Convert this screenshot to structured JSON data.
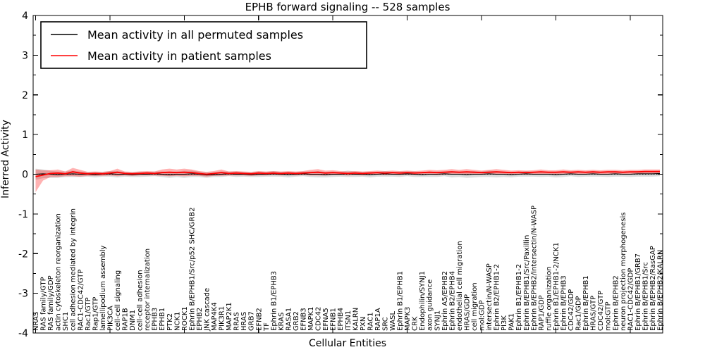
{
  "chart_data": {
    "type": "line",
    "title": "EPHB forward signaling -- 528 samples",
    "xlabel": "Cellular Entities",
    "ylabel": "Inferred Activity",
    "ylim": [
      -4,
      4
    ],
    "ytick_labels": [
      "-4",
      "-3",
      "-2",
      "-1",
      "0",
      "1",
      "2",
      "3",
      "4"
    ],
    "yticks_major": [
      -4,
      -3,
      -2,
      -1,
      0,
      1,
      2,
      3,
      4
    ],
    "yticks_minor": [
      -3.5,
      -2.5,
      -1.5,
      -0.5,
      0.5,
      1.5,
      2.5,
      3.5
    ],
    "x_tick_indices": [
      0,
      10,
      20,
      30,
      40,
      50,
      60,
      70,
      80
    ],
    "grid": false,
    "legend_position": "upper-left",
    "zero_line": {
      "value": 0,
      "style": "dotted",
      "color": "#000000"
    },
    "categories": [
      "NRAS",
      "RAS family/GTP",
      "RAS family/GDP",
      "actin cytoskeleton reorganization",
      "SHC1",
      "cell adhesion mediated by integrin",
      "RAC1-CDC42/GTP",
      "Rac1/GTP",
      "Rap1/GTP",
      "lamellipodium assembly",
      "PIK3CA",
      "cell-cell signaling",
      "RAP1B",
      "DNM1",
      "cell-cell adhesion",
      "receptor internalization",
      "EPHB3",
      "EPHB1",
      "PTK2",
      "NCK1",
      "ROCK1",
      "Ephrin B/EPHB1/Src/p52 SHC/GRB2",
      "EPHB2",
      "JNK cascade",
      "MAP4K4",
      "PIK3R1",
      "MAP2K1",
      "RRAS",
      "HRAS",
      "GRB7",
      "EFNB2",
      "TF",
      "Ephrin B1/EPHB3",
      "KRAS",
      "RASA1",
      "GRB2",
      "EFNB3",
      "MAPK1",
      "CDC42",
      "EFNA5",
      "EFNB1",
      "EPHB4",
      "ITSN1",
      "KALRN",
      "PXN",
      "RAC1",
      "RAP1A",
      "SRC",
      "WASL",
      "Ephrin B1/EPHB1",
      "MAPK3",
      "CRK",
      "Endophilin/SYNJ1",
      "axon guidance",
      "SYNJ1",
      "Ephrin A5/EPHB2",
      "Ephrin B2/EPHB4",
      "endothelial cell migration",
      "HRAS/GDP",
      "cell migration",
      "mol:GDP",
      "intersectin/N-WASP",
      "Ephrin B2/EPHB1-2",
      "PI3K",
      "PAK1",
      "Ephrin B1/EPHB1-2",
      "Ephrin B/EPHB1/Src/Paxillin",
      "Ephrin B/EPHB2/Intersectin/N-WASP",
      "RAP1/GDP",
      "ruffle organization",
      "Ephrin B1/EPHB1-2/NCK1",
      "Ephrin B/EPHB3",
      "CDC42/GDP",
      "Rac1/GDP",
      "Ephrin B/EPHB1",
      "HRAS/GTP",
      "CDC42/GTP",
      "mol:GTP",
      "Ephrin B/EPHB2",
      "neuron projection morphogenesis",
      "RAC1-CDC42/GDP",
      "Ephrin B/EPHB1/GRB7",
      "Ephrin B/EPHB1/Src",
      "Ephrin B/EPHB2/RasGAP",
      "Ephrin B/EPHB2/KALRN"
    ],
    "series": [
      {
        "name": "Mean activity in all permuted samples",
        "color": "#000000",
        "band_color": "#999999",
        "band_opacity": 0.35,
        "values": [
          0.0,
          0.01,
          0.0,
          -0.01,
          0.0,
          0.01,
          0.0,
          0.0,
          -0.01,
          0.0,
          0.01,
          0.0,
          0.0,
          -0.01,
          0.0,
          0.0,
          0.01,
          0.0,
          -0.01,
          0.0,
          0.0,
          0.01,
          0.0,
          -0.02,
          -0.01,
          0.0,
          0.01,
          0.0,
          0.0,
          -0.01,
          0.0,
          0.0,
          0.01,
          0.0,
          -0.01,
          0.0,
          0.01,
          0.0,
          0.0,
          -0.01,
          0.0,
          0.0,
          0.01,
          0.0,
          0.0,
          -0.01,
          0.0,
          0.01,
          0.0,
          0.0,
          0.01,
          0.0,
          -0.01,
          0.0,
          0.0,
          0.01,
          0.0,
          0.0,
          -0.01,
          0.0,
          0.0,
          0.01,
          0.0,
          0.0,
          -0.01,
          0.0,
          0.01,
          0.0,
          0.0,
          0.0,
          -0.01,
          0.0,
          0.01,
          0.0,
          0.0,
          0.01,
          0.0,
          0.0,
          0.01,
          0.0,
          0.0,
          0.01,
          0.01,
          0.01,
          0.02
        ],
        "band_halfwidth": [
          0.14,
          0.11,
          0.09,
          0.08,
          0.07,
          0.08,
          0.07,
          0.06,
          0.07,
          0.06,
          0.07,
          0.08,
          0.06,
          0.06,
          0.07,
          0.06,
          0.06,
          0.07,
          0.08,
          0.07,
          0.09,
          0.08,
          0.07,
          0.07,
          0.06,
          0.07,
          0.06,
          0.07,
          0.06,
          0.06,
          0.07,
          0.06,
          0.07,
          0.06,
          0.07,
          0.06,
          0.06,
          0.07,
          0.08,
          0.07,
          0.07,
          0.06,
          0.08,
          0.07,
          0.06,
          0.07,
          0.06,
          0.07,
          0.06,
          0.07,
          0.06,
          0.07,
          0.06,
          0.07,
          0.07,
          0.06,
          0.08,
          0.07,
          0.08,
          0.08,
          0.07,
          0.08,
          0.08,
          0.07,
          0.07,
          0.06,
          0.07,
          0.06,
          0.07,
          0.06,
          0.07,
          0.07,
          0.06,
          0.07,
          0.06,
          0.07,
          0.06,
          0.07,
          0.07,
          0.06,
          0.07,
          0.07,
          0.07,
          0.07,
          0.07
        ]
      },
      {
        "name": "Mean activity in patient samples",
        "color": "#ff0000",
        "band_color": "#ff0000",
        "band_opacity": 0.3,
        "values": [
          -0.06,
          -0.02,
          0.02,
          0.03,
          0.01,
          0.06,
          0.03,
          0.01,
          0.02,
          0.01,
          0.03,
          0.05,
          0.02,
          0.01,
          0.02,
          0.03,
          0.02,
          0.04,
          0.05,
          0.04,
          0.05,
          0.04,
          0.02,
          0.0,
          0.02,
          0.04,
          0.02,
          0.03,
          0.02,
          0.01,
          0.03,
          0.02,
          0.03,
          0.02,
          0.03,
          0.02,
          0.03,
          0.04,
          0.05,
          0.03,
          0.04,
          0.03,
          0.02,
          0.03,
          0.02,
          0.03,
          0.04,
          0.03,
          0.04,
          0.03,
          0.04,
          0.03,
          0.04,
          0.05,
          0.04,
          0.05,
          0.06,
          0.05,
          0.06,
          0.05,
          0.04,
          0.05,
          0.06,
          0.05,
          0.04,
          0.05,
          0.04,
          0.05,
          0.06,
          0.05,
          0.05,
          0.06,
          0.05,
          0.06,
          0.05,
          0.06,
          0.05,
          0.06,
          0.06,
          0.05,
          0.06,
          0.06,
          0.07,
          0.07,
          0.07
        ],
        "band_hi": [
          0.12,
          0.1,
          0.1,
          0.12,
          0.07,
          0.16,
          0.11,
          0.06,
          0.07,
          0.06,
          0.08,
          0.14,
          0.07,
          0.06,
          0.07,
          0.08,
          0.07,
          0.12,
          0.14,
          0.12,
          0.14,
          0.12,
          0.08,
          0.06,
          0.08,
          0.12,
          0.07,
          0.08,
          0.07,
          0.06,
          0.08,
          0.07,
          0.08,
          0.07,
          0.08,
          0.07,
          0.08,
          0.11,
          0.13,
          0.09,
          0.1,
          0.08,
          0.07,
          0.08,
          0.07,
          0.08,
          0.09,
          0.08,
          0.09,
          0.08,
          0.09,
          0.08,
          0.09,
          0.11,
          0.1,
          0.11,
          0.13,
          0.11,
          0.13,
          0.11,
          0.09,
          0.11,
          0.13,
          0.11,
          0.09,
          0.1,
          0.09,
          0.1,
          0.12,
          0.1,
          0.1,
          0.12,
          0.1,
          0.11,
          0.1,
          0.11,
          0.1,
          0.11,
          0.11,
          0.1,
          0.11,
          0.11,
          0.12,
          0.12,
          0.12
        ],
        "band_lo": [
          -0.45,
          -0.16,
          -0.07,
          -0.07,
          -0.05,
          -0.05,
          -0.06,
          -0.04,
          -0.04,
          -0.04,
          -0.03,
          -0.05,
          -0.03,
          -0.04,
          -0.03,
          -0.03,
          -0.03,
          -0.04,
          -0.05,
          -0.04,
          -0.05,
          -0.04,
          -0.04,
          -0.06,
          -0.04,
          -0.04,
          -0.03,
          -0.03,
          -0.03,
          -0.04,
          -0.03,
          -0.03,
          -0.02,
          -0.03,
          -0.02,
          -0.03,
          -0.02,
          -0.03,
          -0.03,
          -0.03,
          -0.02,
          -0.02,
          -0.03,
          -0.02,
          -0.03,
          -0.02,
          -0.01,
          -0.02,
          -0.01,
          -0.02,
          -0.01,
          -0.02,
          -0.01,
          -0.01,
          -0.02,
          -0.01,
          0.0,
          -0.01,
          0.0,
          -0.01,
          -0.01,
          0.0,
          -0.01,
          0.0,
          -0.01,
          0.0,
          -0.01,
          0.0,
          0.0,
          0.0,
          0.0,
          0.01,
          0.0,
          0.01,
          0.0,
          0.01,
          0.0,
          0.01,
          0.01,
          0.0,
          0.01,
          0.01,
          0.02,
          0.02,
          0.02
        ]
      }
    ]
  }
}
